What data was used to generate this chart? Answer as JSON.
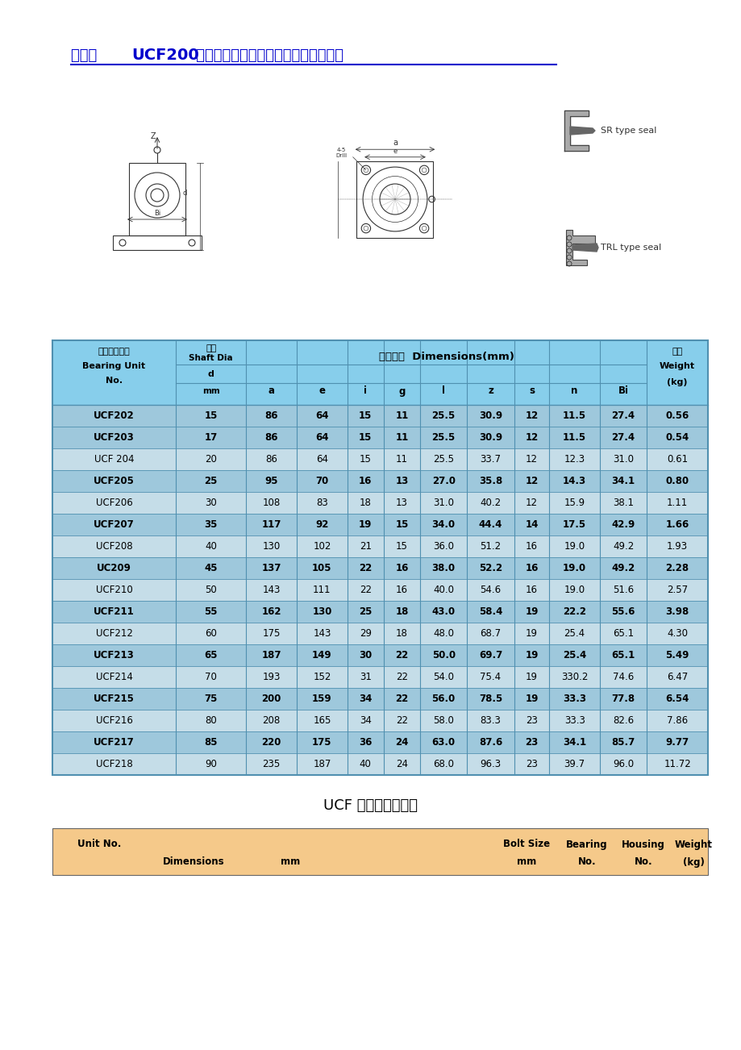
{
  "title_color": "#0000CC",
  "header_bg": "#87CEEB",
  "row_bg_dark": "#9EC8DC",
  "row_bg_light": "#C5DDE8",
  "grid_color": "#5090B0",
  "rows": [
    [
      "UCF202",
      "15",
      "86",
      "64",
      "15",
      "11",
      "25.5",
      "30.9",
      "12",
      "11.5",
      "27.4",
      "0.56"
    ],
    [
      "UCF203",
      "17",
      "86",
      "64",
      "15",
      "11",
      "25.5",
      "30.9",
      "12",
      "11.5",
      "27.4",
      "0.54"
    ],
    [
      "UCF 204",
      "20",
      "86",
      "64",
      "15",
      "11",
      "25.5",
      "33.7",
      "12",
      "12.3",
      "31.0",
      "0.61"
    ],
    [
      "UCF205",
      "25",
      "95",
      "70",
      "16",
      "13",
      "27.0",
      "35.8",
      "12",
      "14.3",
      "34.1",
      "0.80"
    ],
    [
      "UCF206",
      "30",
      "108",
      "83",
      "18",
      "13",
      "31.0",
      "40.2",
      "12",
      "15.9",
      "38.1",
      "1.11"
    ],
    [
      "UCF207",
      "35",
      "117",
      "92",
      "19",
      "15",
      "34.0",
      "44.4",
      "14",
      "17.5",
      "42.9",
      "1.66"
    ],
    [
      "UCF208",
      "40",
      "130",
      "102",
      "21",
      "15",
      "36.0",
      "51.2",
      "16",
      "19.0",
      "49.2",
      "1.93"
    ],
    [
      "UC209",
      "45",
      "137",
      "105",
      "22",
      "16",
      "38.0",
      "52.2",
      "16",
      "19.0",
      "49.2",
      "2.28"
    ],
    [
      "UCF210",
      "50",
      "143",
      "111",
      "22",
      "16",
      "40.0",
      "54.6",
      "16",
      "19.0",
      "51.6",
      "2.57"
    ],
    [
      "UCF211",
      "55",
      "162",
      "130",
      "25",
      "18",
      "43.0",
      "58.4",
      "19",
      "22.2",
      "55.6",
      "3.98"
    ],
    [
      "UCF212",
      "60",
      "175",
      "143",
      "29",
      "18",
      "48.0",
      "68.7",
      "19",
      "25.4",
      "65.1",
      "4.30"
    ],
    [
      "UCF213",
      "65",
      "187",
      "149",
      "30",
      "22",
      "50.0",
      "69.7",
      "19",
      "25.4",
      "65.1",
      "5.49"
    ],
    [
      "UCF214",
      "70",
      "193",
      "152",
      "31",
      "22",
      "54.0",
      "75.4",
      "19",
      "330.2",
      "74.6",
      "6.47"
    ],
    [
      "UCF215",
      "75",
      "200",
      "159",
      "34",
      "22",
      "56.0",
      "78.5",
      "19",
      "33.3",
      "77.8",
      "6.54"
    ],
    [
      "UCF216",
      "80",
      "208",
      "165",
      "34",
      "22",
      "58.0",
      "83.3",
      "23",
      "33.3",
      "82.6",
      "7.86"
    ],
    [
      "UCF217",
      "85",
      "220",
      "175",
      "36",
      "24",
      "63.0",
      "87.6",
      "23",
      "34.1",
      "85.7",
      "9.77"
    ],
    [
      "UCF218",
      "90",
      "235",
      "187",
      "40",
      "24",
      "68.0",
      "96.3",
      "23",
      "39.7",
      "96.0",
      "11.72"
    ]
  ],
  "bold_row_indices": [
    0,
    1,
    3,
    5,
    7,
    9,
    11,
    13,
    15
  ],
  "dark_row_indices": [
    0,
    1,
    3,
    5,
    7,
    9,
    11,
    13,
    15
  ],
  "ucf_note": "UCF 系列产品说明：",
  "bottom_table_bg": "#F5C98A"
}
